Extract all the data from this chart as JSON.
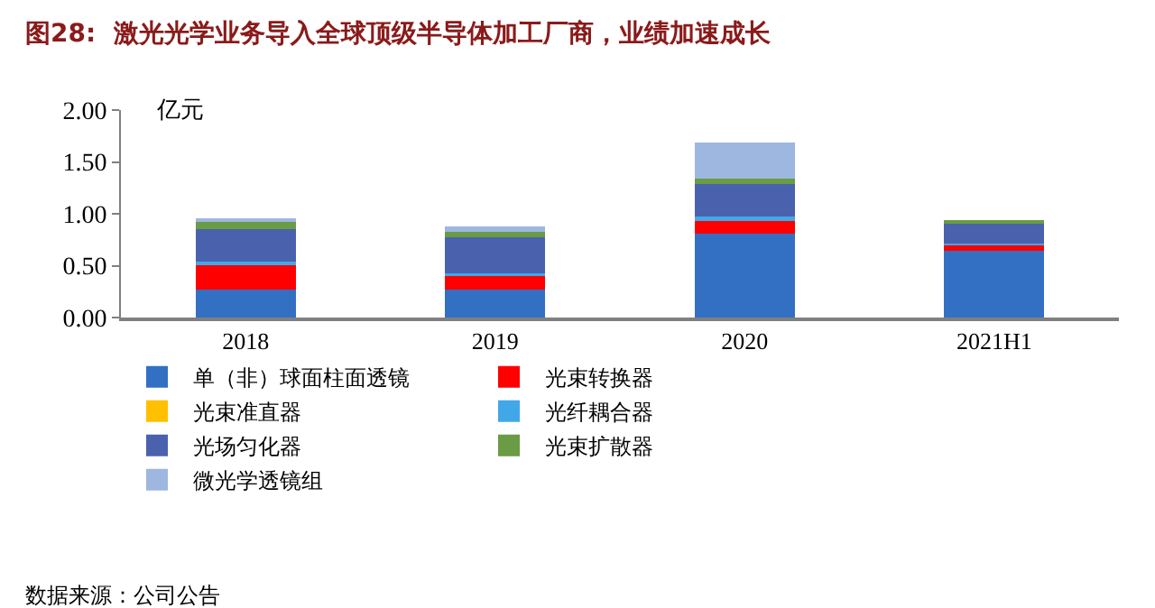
{
  "chart_data": {
    "type": "bar",
    "stacked": true,
    "title": "图28:  激光光学业务导入全球顶级半导体加工厂商，业绩加速成长",
    "ylabel": "亿元",
    "categories": [
      "2018",
      "2019",
      "2020",
      "2021H1"
    ],
    "series": [
      {
        "name": "单（非）球面柱面透镜",
        "color": "#3370c4",
        "values": [
          0.27,
          0.27,
          0.81,
          0.64
        ]
      },
      {
        "name": "光束转换器",
        "color": "#ff0000",
        "values": [
          0.25,
          0.13,
          0.12,
          0.06
        ]
      },
      {
        "name": "光束准直器",
        "color": "#ffc000",
        "values": [
          0,
          0,
          0,
          0
        ]
      },
      {
        "name": "光纤耦合器",
        "color": "#41a8e8",
        "values": [
          0.02,
          0.03,
          0.04,
          0.01
        ]
      },
      {
        "name": "光场匀化器",
        "color": "#4a62ad",
        "values": [
          0.31,
          0.34,
          0.32,
          0.2
        ]
      },
      {
        "name": "光束扩散器",
        "color": "#6a9b45",
        "values": [
          0.08,
          0.06,
          0.05,
          0.03
        ]
      },
      {
        "name": "微光学透镜组",
        "color": "#9db7e0",
        "values": [
          0.03,
          0.05,
          0.35,
          0
        ]
      }
    ],
    "ylim": [
      0,
      2.0
    ],
    "yticks": [
      {
        "value": 0,
        "label": "0.00"
      },
      {
        "value": 0.5,
        "label": "0.50"
      },
      {
        "value": 1.0,
        "label": "1.00"
      },
      {
        "value": 1.5,
        "label": "1.50"
      },
      {
        "value": 2.0,
        "label": "2.00"
      }
    ],
    "legend": "bottom",
    "annotations": [
      "数据来源：公司公告"
    ]
  }
}
